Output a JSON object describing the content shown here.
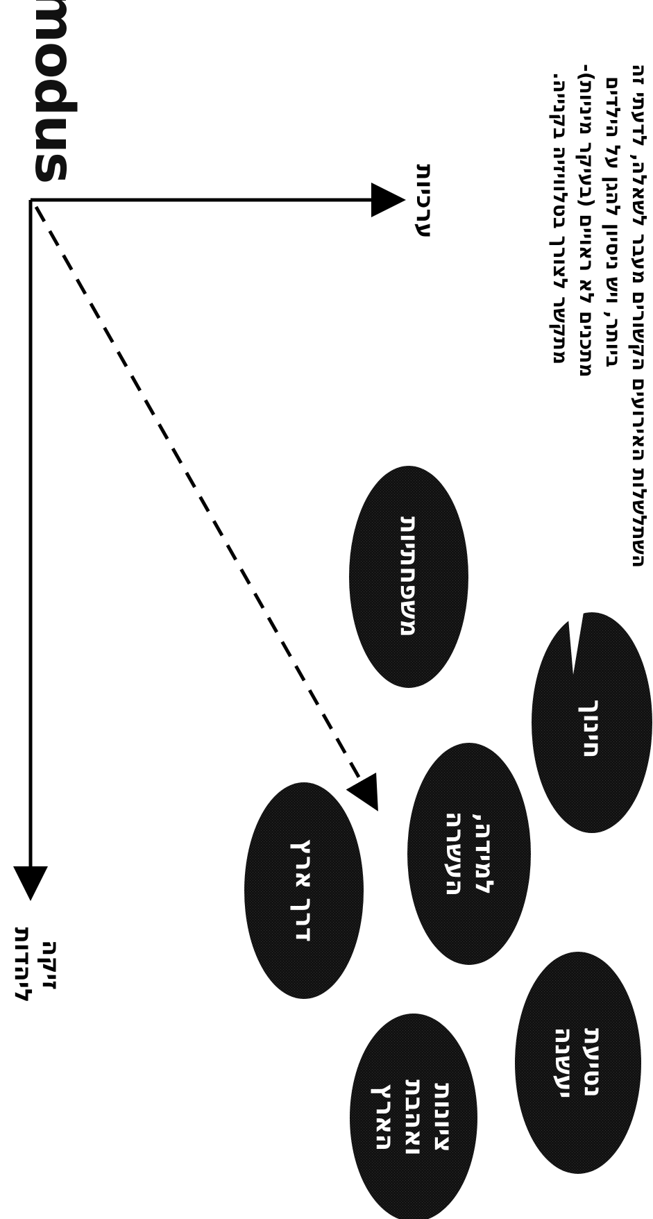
{
  "logo": {
    "text": "modus"
  },
  "axes": {
    "top_label": "ערכיות",
    "bottom_label": "זיקה\nליהדות"
  },
  "note": {
    "lines": [
      "השתלשלות האירועים הקשורים מעבר לשאלה, לדעתי זה",
      "ביותר, ויש ניסיון להגן על הילדים",
      "מתכנים לא ראויים (בעיקר מיניות)-",
      "מתקשר לצורך בטלוויזיה בקנייה."
    ]
  },
  "ellipses": [
    {
      "id": "mishpachtiyut",
      "label": "משפחתיות"
    },
    {
      "id": "chinuch",
      "label": "חינוך"
    },
    {
      "id": "lemida",
      "label": "למידה,\nהעשרה"
    },
    {
      "id": "derech-eretz",
      "label": "דרך ארץ"
    },
    {
      "id": "tikva",
      "label": "נטיעת יעשנה"
    },
    {
      "id": "tziyonut",
      "label": "ציונות\nואהבת\nהארץ"
    }
  ],
  "colors": {
    "ellipse_fill": "#111111",
    "ink": "#000000"
  }
}
